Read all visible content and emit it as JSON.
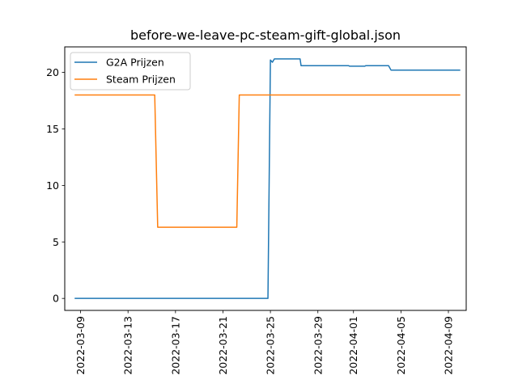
{
  "chart_data": {
    "type": "line",
    "title": "before-we-leave-pc-steam-gift-global.json",
    "xlabel": "",
    "ylabel": "",
    "x_is_date": true,
    "xlim": [
      "2022-03-07T16:00",
      "2022-04-10T12:00"
    ],
    "ylim": [
      -1.06,
      22.26
    ],
    "x_ticks": [
      "2022-03-09",
      "2022-03-13",
      "2022-03-17",
      "2022-03-21",
      "2022-03-25",
      "2022-03-29",
      "2022-04-01",
      "2022-04-05",
      "2022-04-09"
    ],
    "y_ticks": [
      0,
      5,
      10,
      15,
      20
    ],
    "grid": false,
    "legend": "top-left",
    "series": [
      {
        "name": "G2A Prijzen",
        "color": "#1f77b4",
        "points": [
          [
            "2022-03-08T12:00",
            0
          ],
          [
            "2022-03-24T19:00",
            0
          ],
          [
            "2022-03-25T00:00",
            21.1
          ],
          [
            "2022-03-25T04:00",
            20.9
          ],
          [
            "2022-03-25T08:00",
            21.2
          ],
          [
            "2022-03-27T12:00",
            21.2
          ],
          [
            "2022-03-27T14:00",
            20.6
          ],
          [
            "2022-03-31T14:00",
            20.6
          ],
          [
            "2022-03-31T16:00",
            20.55
          ],
          [
            "2022-04-01T23:00",
            20.55
          ],
          [
            "2022-04-02T01:00",
            20.6
          ],
          [
            "2022-04-03T23:00",
            20.6
          ],
          [
            "2022-04-04T04:00",
            20.2
          ],
          [
            "2022-04-10T00:00",
            20.2
          ]
        ]
      },
      {
        "name": "Steam Prijzen",
        "color": "#ff7f0e",
        "points": [
          [
            "2022-03-08T12:00",
            18
          ],
          [
            "2022-03-15T06:00",
            18
          ],
          [
            "2022-03-15T12:00",
            6.3
          ],
          [
            "2022-03-22T04:00",
            6.3
          ],
          [
            "2022-03-22T09:00",
            18
          ],
          [
            "2022-04-10T00:00",
            18
          ]
        ]
      }
    ]
  }
}
